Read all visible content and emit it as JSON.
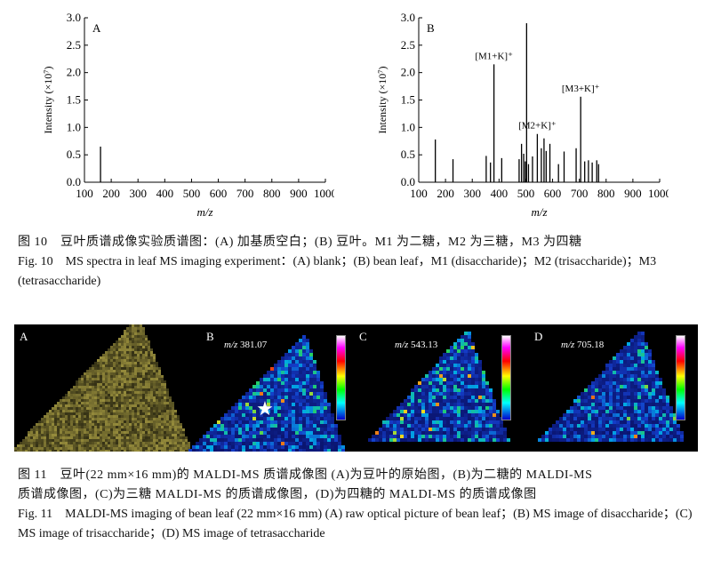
{
  "chart_data": [
    {
      "type": "bar",
      "panel": "A",
      "xlabel": "m/z",
      "ylabel": "Intensity (×10⁷)",
      "xlim": [
        100,
        1000
      ],
      "ylim": [
        0,
        3.0
      ],
      "xticks": [
        "100",
        "200",
        "300",
        "400",
        "500",
        "600",
        "700",
        "800",
        "900",
        "1000"
      ],
      "yticks": [
        "0.0",
        "0.5",
        "1.0",
        "1.5",
        "2.0",
        "2.5",
        "3.0"
      ],
      "peaks": [
        {
          "x": 160,
          "y": 0.65
        }
      ],
      "annotations": []
    },
    {
      "type": "bar",
      "panel": "B",
      "xlabel": "m/z",
      "ylabel": "Intensity (×10⁷)",
      "xlim": [
        100,
        1000
      ],
      "ylim": [
        0,
        3.0
      ],
      "xticks": [
        "100",
        "200",
        "300",
        "400",
        "500",
        "600",
        "700",
        "800",
        "900",
        "1000"
      ],
      "yticks": [
        "0.0",
        "0.5",
        "1.0",
        "1.5",
        "2.0",
        "2.5",
        "3.0"
      ],
      "peaks": [
        {
          "x": 162,
          "y": 0.78
        },
        {
          "x": 228,
          "y": 0.42
        },
        {
          "x": 352,
          "y": 0.48
        },
        {
          "x": 368,
          "y": 0.36
        },
        {
          "x": 381,
          "y": 2.15
        },
        {
          "x": 410,
          "y": 0.44
        },
        {
          "x": 475,
          "y": 0.42
        },
        {
          "x": 484,
          "y": 0.7
        },
        {
          "x": 492,
          "y": 0.52
        },
        {
          "x": 498,
          "y": 0.38
        },
        {
          "x": 503,
          "y": 2.9
        },
        {
          "x": 510,
          "y": 0.33
        },
        {
          "x": 525,
          "y": 0.47
        },
        {
          "x": 543,
          "y": 0.88
        },
        {
          "x": 558,
          "y": 0.62
        },
        {
          "x": 568,
          "y": 0.8
        },
        {
          "x": 576,
          "y": 0.57
        },
        {
          "x": 590,
          "y": 0.7
        },
        {
          "x": 622,
          "y": 0.33
        },
        {
          "x": 643,
          "y": 0.56
        },
        {
          "x": 688,
          "y": 0.62
        },
        {
          "x": 705,
          "y": 1.56
        },
        {
          "x": 720,
          "y": 0.38
        },
        {
          "x": 734,
          "y": 0.4
        },
        {
          "x": 748,
          "y": 0.36
        },
        {
          "x": 765,
          "y": 0.4
        },
        {
          "x": 772,
          "y": 0.33
        }
      ],
      "annotations": [
        {
          "text": "[M1+K]⁺",
          "x": 381,
          "y": 2.15
        },
        {
          "text": "[M2+K]⁺",
          "x": 543,
          "y": 0.88
        },
        {
          "text": "[M3+K]⁺",
          "x": 705,
          "y": 1.56
        }
      ]
    }
  ],
  "caption10": {
    "zh": "图 10　豆叶质谱成像实验质谱图：(A) 加基质空白；(B) 豆叶。M1 为二糖，M2 为三糖，M3 为四糖",
    "en": "Fig. 10　MS spectra in leaf MS imaging experiment：(A) blank；(B) bean leaf，M1 (disaccharide)；M2 (trisaccharide)；M3 (tetrasaccharide)"
  },
  "images": {
    "panels": [
      {
        "label": "A",
        "mz_prefix": "",
        "mz_value": ""
      },
      {
        "label": "B",
        "mz_prefix": "m/z",
        "mz_value": "381.07"
      },
      {
        "label": "C",
        "mz_prefix": "m/z",
        "mz_value": "543.13"
      },
      {
        "label": "D",
        "mz_prefix": "m/z",
        "mz_value": "705.18"
      }
    ],
    "marker": "★"
  },
  "caption11": {
    "zh1": "图 11　豆叶(22 mm×16 mm)的 MALDI-MS 质谱成像图 (A)为豆叶的原始图，(B)为二糖的 MALDI-MS",
    "zh2": "质谱成像图，(C)为三糖 MALDI-MS 的质谱成像图，(D)为四糖的 MALDI-MS 的质谱成像图",
    "en": "Fig. 11　MALDI-MS imaging of bean leaf (22 mm×16 mm) (A) raw optical picture of bean leaf；(B) MS image of disaccharide；(C) MS image of trisaccharide；(D) MS image of tetrasaccharide"
  }
}
